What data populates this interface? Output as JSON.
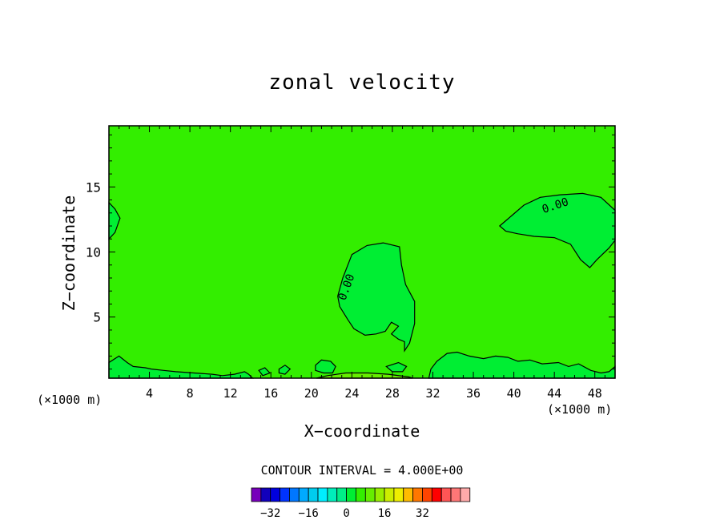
{
  "chart_data": {
    "type": "heatmap",
    "title": "zonal velocity",
    "xlabel": "X−coordinate",
    "ylabel": "Z−coordinate",
    "x_unit": "(×1000 m)",
    "xlim": [
      0,
      50
    ],
    "ylim": [
      0.3,
      19.7
    ],
    "x_ticks": [
      4,
      8,
      12,
      16,
      20,
      24,
      28,
      32,
      36,
      40,
      44,
      48
    ],
    "y_ticks": [
      5,
      10,
      15
    ],
    "background_value_color": "#33ee00",
    "contour_interval_text": "CONTOUR INTERVAL = 4.000E+00",
    "contour_label": "0.00",
    "regions": [
      {
        "name": "positive-region",
        "color": "#00ee33",
        "points": [
          [
            22.6,
            6.6
          ],
          [
            23.1,
            8.0
          ],
          [
            24.0,
            9.8
          ],
          [
            25.5,
            10.5
          ],
          [
            27.1,
            10.7
          ],
          [
            28.7,
            10.4
          ],
          [
            28.9,
            9.0
          ],
          [
            29.3,
            7.5
          ],
          [
            30.2,
            6.2
          ],
          [
            30.2,
            4.5
          ],
          [
            29.7,
            3.0
          ],
          [
            29.2,
            2.4
          ],
          [
            29.2,
            3.1
          ],
          [
            28.6,
            3.3
          ],
          [
            27.9,
            3.7
          ],
          [
            28.6,
            4.3
          ],
          [
            27.9,
            4.6
          ],
          [
            27.3,
            3.9
          ],
          [
            26.4,
            3.7
          ],
          [
            25.3,
            3.6
          ],
          [
            24.2,
            4.1
          ],
          [
            23.6,
            4.8
          ],
          [
            22.8,
            5.8
          ]
        ]
      },
      {
        "name": "positive-region",
        "color": "#00ee33",
        "points": [
          [
            38.6,
            12.0
          ],
          [
            39.8,
            12.8
          ],
          [
            41.0,
            13.6
          ],
          [
            42.6,
            14.2
          ],
          [
            44.6,
            14.4
          ],
          [
            46.8,
            14.5
          ],
          [
            48.6,
            14.2
          ],
          [
            50.0,
            13.2
          ],
          [
            50.0,
            10.9
          ],
          [
            49.4,
            10.3
          ],
          [
            48.2,
            9.4
          ],
          [
            47.5,
            8.8
          ],
          [
            46.6,
            9.4
          ],
          [
            45.6,
            10.6
          ],
          [
            44.0,
            11.1
          ],
          [
            42.0,
            11.2
          ],
          [
            40.4,
            11.4
          ],
          [
            39.2,
            11.6
          ]
        ]
      },
      {
        "name": "positive-region",
        "color": "#00ee33",
        "points": [
          [
            0,
            13.8
          ],
          [
            0.6,
            13.3
          ],
          [
            1.1,
            12.6
          ],
          [
            0.6,
            11.5
          ],
          [
            0,
            11.0
          ]
        ]
      },
      {
        "name": "positive-region",
        "color": "#00ee33",
        "points": [
          [
            0,
            0.3
          ],
          [
            0,
            1.5
          ],
          [
            1.0,
            2.0
          ],
          [
            1.8,
            1.5
          ],
          [
            2.4,
            1.2
          ],
          [
            3.6,
            1.1
          ],
          [
            4.2,
            1.0
          ],
          [
            5.4,
            0.9
          ],
          [
            6.6,
            0.8
          ],
          [
            8.4,
            0.7
          ],
          [
            10.2,
            0.6
          ],
          [
            11.2,
            0.5
          ],
          [
            12.4,
            0.6
          ],
          [
            13.4,
            0.8
          ],
          [
            13.8,
            0.6
          ],
          [
            14.2,
            0.3
          ]
        ]
      },
      {
        "name": "positive-region",
        "color": "#00ee33",
        "points": [
          [
            31.6,
            0.3
          ],
          [
            31.8,
            1.0
          ],
          [
            32.4,
            1.6
          ],
          [
            33.4,
            2.2
          ],
          [
            34.4,
            2.3
          ],
          [
            35.6,
            2.0
          ],
          [
            37.0,
            1.8
          ],
          [
            38.2,
            2.0
          ],
          [
            39.4,
            1.9
          ],
          [
            40.4,
            1.6
          ],
          [
            41.6,
            1.7
          ],
          [
            42.8,
            1.4
          ],
          [
            44.4,
            1.5
          ],
          [
            45.4,
            1.2
          ],
          [
            46.4,
            1.4
          ],
          [
            47.6,
            0.9
          ],
          [
            48.6,
            0.7
          ],
          [
            49.4,
            0.8
          ],
          [
            50.0,
            1.2
          ],
          [
            50.0,
            0.3
          ]
        ]
      },
      {
        "name": "positive-region",
        "color": "#00ee33",
        "points": [
          [
            20.4,
            1.3
          ],
          [
            21.0,
            1.7
          ],
          [
            21.9,
            1.6
          ],
          [
            22.4,
            1.2
          ],
          [
            22.1,
            0.7
          ],
          [
            21.2,
            0.7
          ],
          [
            20.4,
            0.9
          ]
        ]
      },
      {
        "name": "positive-region",
        "color": "#00ee33",
        "points": [
          [
            16.8,
            1.0
          ],
          [
            17.4,
            1.3
          ],
          [
            17.9,
            1.0
          ],
          [
            17.4,
            0.6
          ],
          [
            16.8,
            0.7
          ]
        ]
      },
      {
        "name": "positive-region",
        "color": "#00ee33",
        "points": [
          [
            14.8,
            0.9
          ],
          [
            15.4,
            1.1
          ],
          [
            15.9,
            0.7
          ],
          [
            15.2,
            0.5
          ]
        ]
      },
      {
        "name": "positive-region",
        "color": "#00ee33",
        "points": [
          [
            27.4,
            1.2
          ],
          [
            28.6,
            1.5
          ],
          [
            29.4,
            1.2
          ],
          [
            29.0,
            0.8
          ],
          [
            28.0,
            0.8
          ]
        ]
      },
      {
        "name": "negative-region",
        "color": "#66ee00",
        "points": [
          [
            20.5,
            0.3
          ],
          [
            21.6,
            0.5
          ],
          [
            23.4,
            0.7
          ],
          [
            25.6,
            0.7
          ],
          [
            27.6,
            0.6
          ],
          [
            29.6,
            0.4
          ],
          [
            30.0,
            0.3
          ]
        ]
      }
    ],
    "legend": {
      "tick_labels": [
        "−32",
        "−16",
        "0",
        "16",
        "32"
      ],
      "tick_values": [
        -32,
        -16,
        0,
        16,
        32
      ],
      "bin_min": -40,
      "bin_width": 4,
      "colors": [
        "#7700bb",
        "#1100bb",
        "#0000dd",
        "#0033ff",
        "#0077ff",
        "#00aaff",
        "#00ccee",
        "#00eeff",
        "#00eebb",
        "#00ee88",
        "#00ee33",
        "#33ee00",
        "#66ee00",
        "#99ee00",
        "#ccee00",
        "#eeee00",
        "#ffbb00",
        "#ff7700",
        "#ff4400",
        "#ff0000",
        "#ff5555",
        "#ff7777",
        "#ffaaaa"
      ]
    }
  }
}
